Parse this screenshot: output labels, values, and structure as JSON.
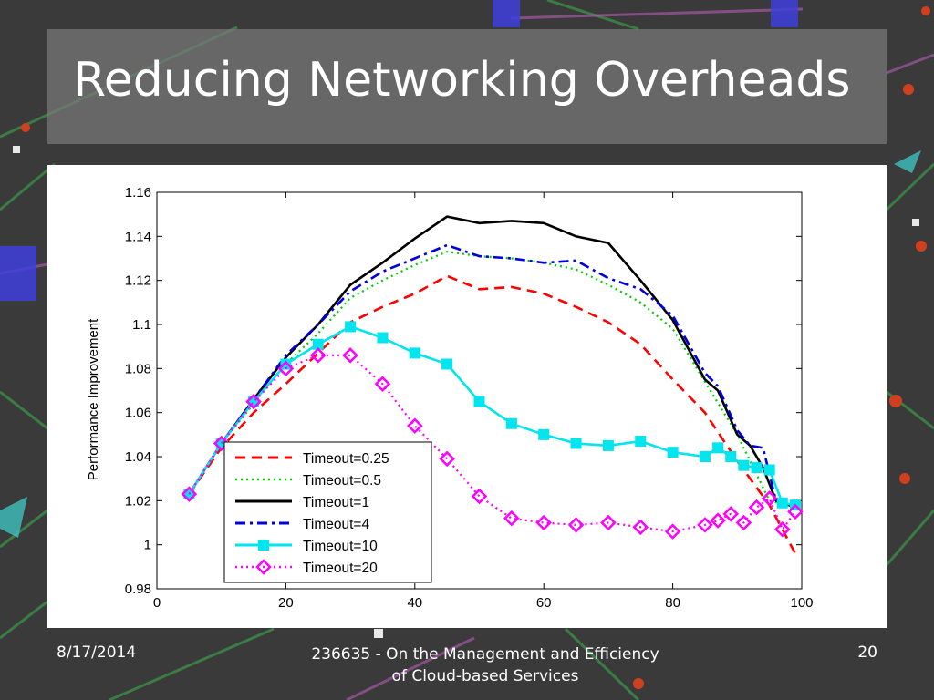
{
  "slide": {
    "title": "Reducing Networking Overheads",
    "footer": {
      "date": "8/17/2014",
      "center_line1": "236635 - On the Management and Efficiency",
      "center_line2": "of Cloud-based Services",
      "page": "20"
    }
  },
  "chart_data": {
    "type": "line",
    "title": "",
    "xlabel": "",
    "ylabel": "Performance Improvement",
    "xlim": [
      0,
      100
    ],
    "ylim": [
      0.98,
      1.16
    ],
    "xticks": [
      0,
      20,
      40,
      60,
      80,
      100
    ],
    "xtick_labels": [
      "0",
      "20",
      "40",
      "60",
      "80",
      "100"
    ],
    "yticks": [
      0.98,
      1,
      1.02,
      1.04,
      1.06,
      1.08,
      1.1,
      1.12,
      1.14,
      1.16
    ],
    "ytick_labels": [
      "0.98",
      "1",
      "1.02",
      "1.04",
      "1.06",
      "1.08",
      "1.1",
      "1.12",
      "1.14",
      "1.16"
    ],
    "grid": false,
    "legend_position": "bottom-left",
    "series": [
      {
        "name": "Timeout=0.25",
        "color": "#ff0000",
        "style": "dashed",
        "marker": "none",
        "x": [
          5,
          10,
          15,
          20,
          25,
          30,
          35,
          40,
          45,
          50,
          55,
          60,
          65,
          70,
          75,
          80,
          85,
          90,
          95,
          99
        ],
        "y": [
          1.023,
          1.044,
          1.06,
          1.073,
          1.087,
          1.101,
          1.108,
          1.114,
          1.122,
          1.116,
          1.117,
          1.114,
          1.108,
          1.101,
          1.091,
          1.075,
          1.06,
          1.038,
          1.018,
          0.996
        ]
      },
      {
        "name": "Timeout=0.5",
        "color": "#00cc00",
        "style": "dotted",
        "marker": "none",
        "x": [
          5,
          10,
          15,
          20,
          25,
          30,
          35,
          40,
          45,
          50,
          55,
          60,
          65,
          70,
          75,
          80,
          85,
          90,
          95,
          99
        ],
        "y": [
          1.023,
          1.046,
          1.064,
          1.082,
          1.096,
          1.112,
          1.12,
          1.127,
          1.133,
          1.131,
          1.13,
          1.128,
          1.125,
          1.118,
          1.11,
          1.098,
          1.074,
          1.05,
          1.02,
          1.017
        ]
      },
      {
        "name": "Timeout=1",
        "color": "#000000",
        "style": "solid",
        "marker": "none",
        "x": [
          5,
          10,
          15,
          20,
          25,
          30,
          35,
          40,
          45,
          50,
          55,
          60,
          65,
          70,
          75,
          80,
          85,
          87,
          90,
          92,
          94,
          96,
          99
        ],
        "y": [
          1.023,
          1.046,
          1.066,
          1.085,
          1.1,
          1.118,
          1.128,
          1.139,
          1.149,
          1.146,
          1.147,
          1.146,
          1.14,
          1.137,
          1.12,
          1.102,
          1.075,
          1.07,
          1.05,
          1.045,
          1.035,
          1.02,
          1.017
        ]
      },
      {
        "name": "Timeout=4",
        "color": "#0000dd",
        "style": "dashdot",
        "marker": "none",
        "x": [
          5,
          10,
          15,
          20,
          25,
          30,
          35,
          40,
          45,
          50,
          55,
          60,
          65,
          70,
          75,
          80,
          85,
          87,
          90,
          92,
          94,
          96,
          99
        ],
        "y": [
          1.023,
          1.046,
          1.066,
          1.086,
          1.1,
          1.115,
          1.124,
          1.13,
          1.136,
          1.131,
          1.13,
          1.128,
          1.129,
          1.121,
          1.116,
          1.104,
          1.078,
          1.072,
          1.052,
          1.045,
          1.044,
          1.02,
          1.018
        ]
      },
      {
        "name": "Timeout=10",
        "color": "#00e5ee",
        "style": "solid",
        "marker": "square",
        "x": [
          5,
          10,
          15,
          20,
          25,
          30,
          35,
          40,
          45,
          50,
          55,
          60,
          65,
          70,
          75,
          80,
          85,
          87,
          89,
          91,
          93,
          95,
          97,
          99
        ],
        "y": [
          1.023,
          1.046,
          1.065,
          1.082,
          1.091,
          1.099,
          1.094,
          1.087,
          1.082,
          1.065,
          1.055,
          1.05,
          1.046,
          1.045,
          1.047,
          1.042,
          1.04,
          1.044,
          1.04,
          1.036,
          1.035,
          1.034,
          1.019,
          1.018
        ]
      },
      {
        "name": "Timeout=20",
        "color": "#ff00ff",
        "style": "dotted",
        "marker": "diamond",
        "x": [
          5,
          10,
          15,
          20,
          25,
          30,
          35,
          40,
          45,
          50,
          55,
          60,
          65,
          70,
          75,
          80,
          85,
          87,
          89,
          91,
          93,
          95,
          97,
          99
        ],
        "y": [
          1.023,
          1.046,
          1.065,
          1.08,
          1.086,
          1.086,
          1.073,
          1.054,
          1.039,
          1.022,
          1.012,
          1.01,
          1.009,
          1.01,
          1.008,
          1.006,
          1.009,
          1.011,
          1.014,
          1.01,
          1.017,
          1.021,
          1.007,
          1.015
        ]
      }
    ]
  }
}
